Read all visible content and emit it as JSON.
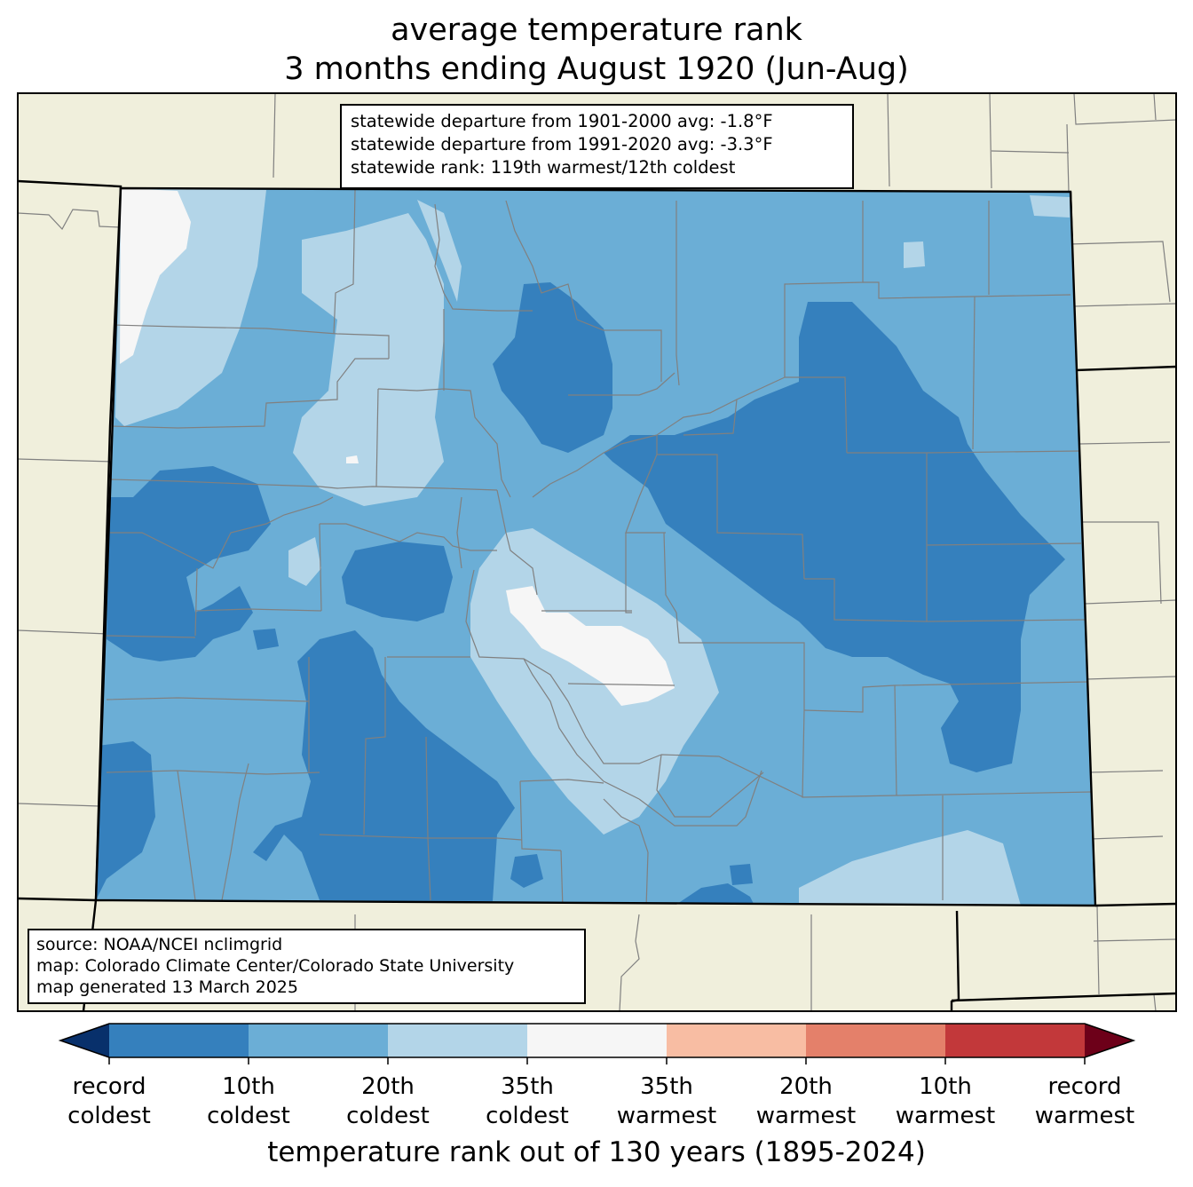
{
  "title": {
    "line1": "average temperature rank",
    "line2": "3 months ending August 1920 (Jun-Aug)"
  },
  "stats": {
    "line1": "statewide departure from 1901-2000 avg: -1.8°F",
    "line2": "statewide departure from 1991-2020 avg: -3.3°F",
    "line3": "statewide rank: 119th warmest/12th coldest"
  },
  "source": {
    "line1": "source: NOAA/NCEI nclimgrid",
    "line2": "map: Colorado Climate Center/Colorado State University",
    "line3": "map generated 13 March 2025"
  },
  "colorbar": {
    "label": "temperature rank out of 130 years (1895-2024)",
    "colors": [
      "#08306b",
      "#3580bd",
      "#6baed6",
      "#b3d5e8",
      "#f6f6f6",
      "#f8bda3",
      "#e4806a",
      "#c2383a",
      "#6d0019"
    ],
    "ticks": [
      {
        "line1": "record",
        "line2": "coldest"
      },
      {
        "line1": "10th",
        "line2": "coldest"
      },
      {
        "line1": "20th",
        "line2": "coldest"
      },
      {
        "line1": "35th",
        "line2": "coldest"
      },
      {
        "line1": "35th",
        "line2": "warmest"
      },
      {
        "line1": "20th",
        "line2": "warmest"
      },
      {
        "line1": "10th",
        "line2": "warmest"
      },
      {
        "line1": "record",
        "line2": "warmest"
      }
    ]
  },
  "map": {
    "land_color": "#f0efdc",
    "county_line_color": "#808080"
  }
}
